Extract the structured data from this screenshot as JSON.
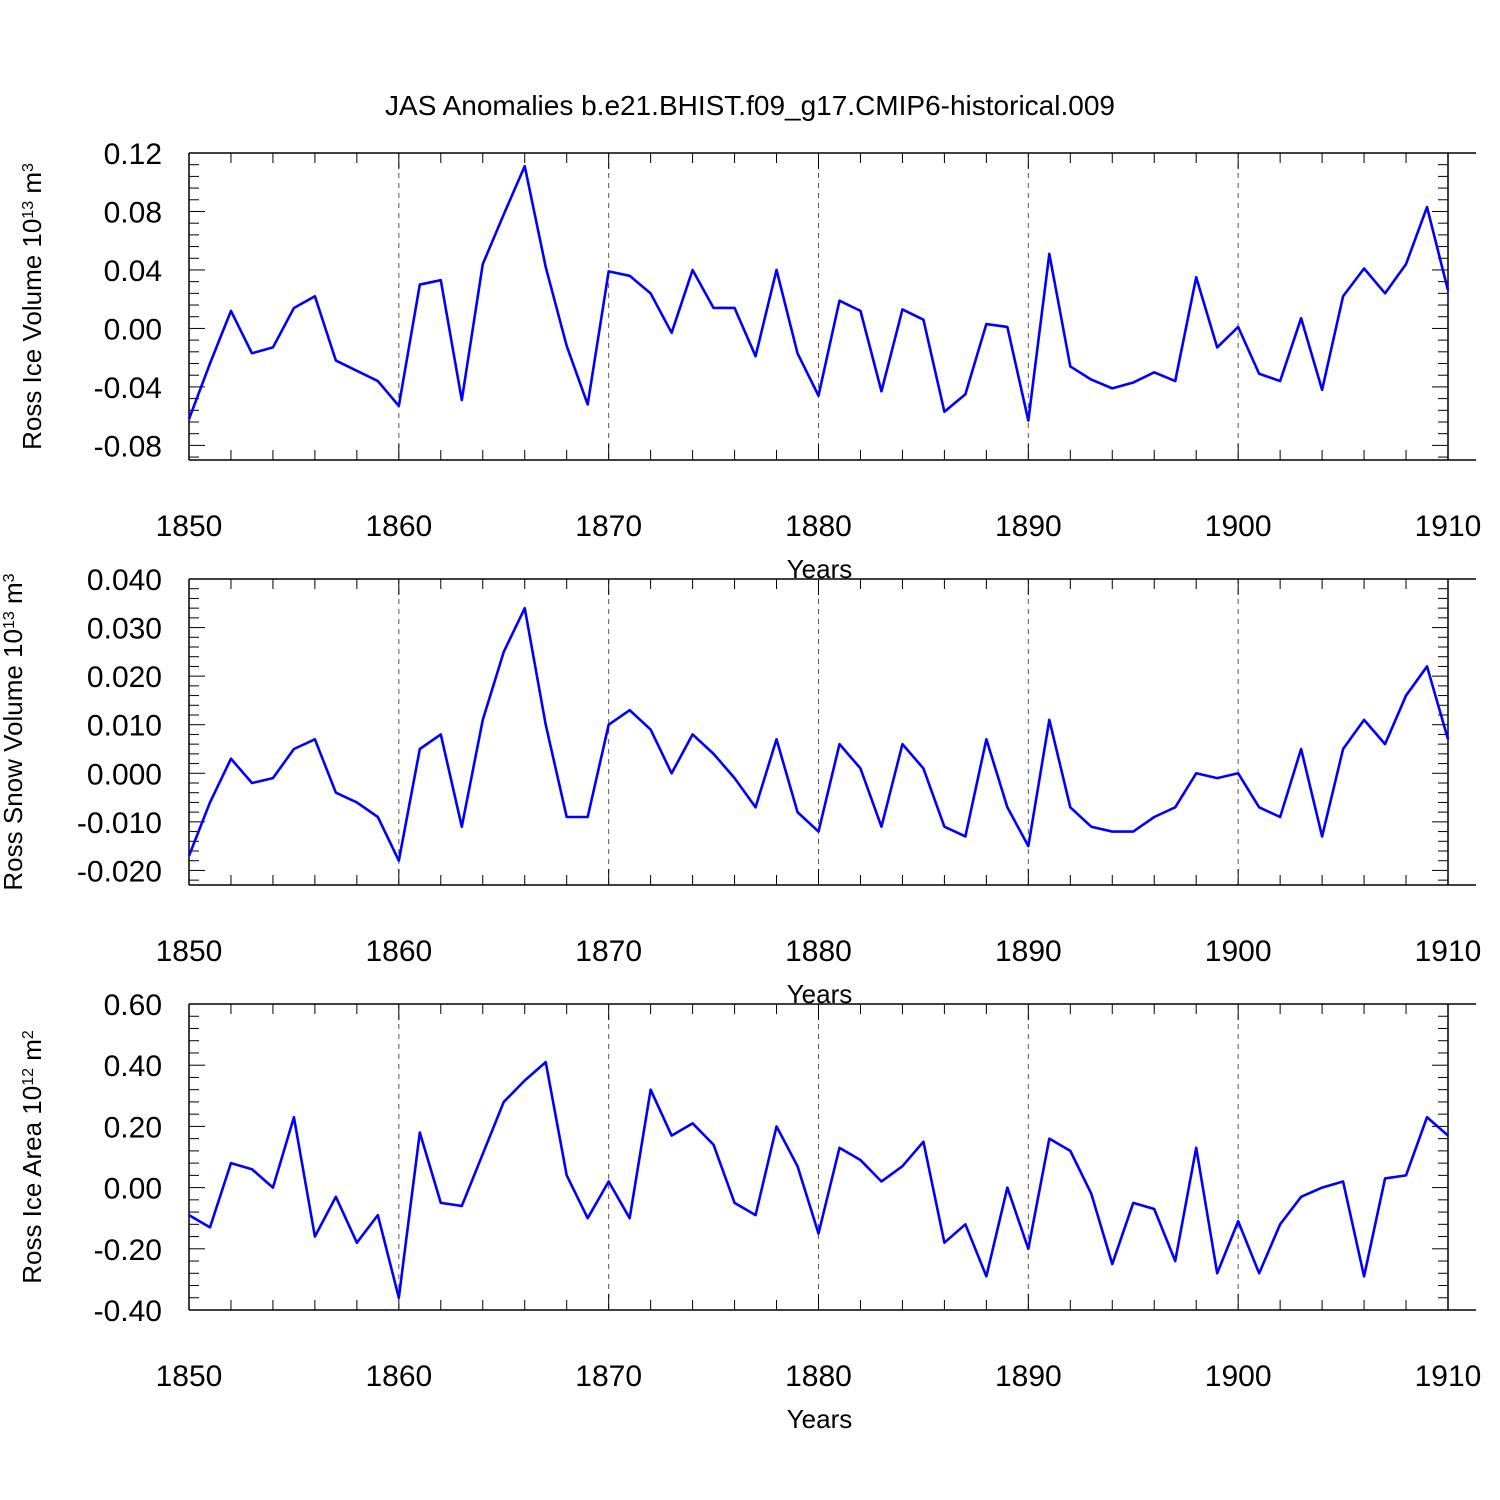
{
  "title": "JAS Anomalies b.e21.BHIST.f09_g17.CMIP6-historical.009",
  "colors": {
    "line": "#0000ff",
    "axis": "#000000",
    "grid": "#555555"
  },
  "chart_data": [
    {
      "type": "line",
      "ylabel_base": "Ross Ice Volume 10",
      "ylabel_exp": "13",
      "ylabel_unit": " m",
      "ylabel_unit_exp": "3",
      "xlabel": "Years",
      "xlim": [
        1850,
        1910
      ],
      "ylim": [
        -0.09,
        0.12
      ],
      "yticks": [
        -0.08,
        -0.04,
        0.0,
        0.04,
        0.08,
        0.12
      ],
      "ytick_labels": [
        "-0.08",
        "-0.04",
        "0.00",
        "0.04",
        "0.08",
        "0.12"
      ],
      "xticks": [
        1850,
        1860,
        1870,
        1880,
        1890,
        1900,
        1910
      ],
      "xtick_labels": [
        "1850",
        "1860",
        "1870",
        "1880",
        "1890",
        "1900",
        "1910"
      ],
      "x_start": 1850,
      "values": [
        -0.062,
        -0.024,
        0.012,
        -0.017,
        -0.013,
        0.014,
        0.022,
        -0.022,
        -0.029,
        -0.036,
        -0.053,
        0.03,
        0.033,
        -0.049,
        0.044,
        0.078,
        0.111,
        0.042,
        -0.012,
        -0.052,
        0.039,
        0.036,
        0.024,
        -0.003,
        0.04,
        0.014,
        0.014,
        -0.019,
        0.04,
        -0.017,
        -0.046,
        0.019,
        0.012,
        -0.043,
        0.013,
        0.006,
        -0.057,
        -0.045,
        0.003,
        0.001,
        -0.063,
        0.051,
        -0.026,
        -0.035,
        -0.041,
        -0.037,
        -0.03,
        -0.036,
        0.035,
        -0.013,
        0.001,
        -0.031,
        -0.036,
        0.007,
        -0.042,
        0.022,
        0.041,
        0.024,
        0.044,
        0.083,
        0.026
      ]
    },
    {
      "type": "line",
      "ylabel_base": "Ross Snow Volume 10",
      "ylabel_exp": "13",
      "ylabel_unit": " m",
      "ylabel_unit_exp": "3",
      "xlabel": "Years",
      "xlim": [
        1850,
        1910
      ],
      "ylim": [
        -0.023,
        0.04
      ],
      "yticks": [
        -0.02,
        -0.01,
        0.0,
        0.01,
        0.02,
        0.03,
        0.04
      ],
      "ytick_labels": [
        "-0.020",
        "-0.010",
        "0.000",
        "0.010",
        "0.020",
        "0.030",
        "0.040"
      ],
      "xticks": [
        1850,
        1860,
        1870,
        1880,
        1890,
        1900,
        1910
      ],
      "xtick_labels": [
        "1850",
        "1860",
        "1870",
        "1880",
        "1890",
        "1900",
        "1910"
      ],
      "x_start": 1850,
      "values": [
        -0.017,
        -0.006,
        0.003,
        -0.002,
        -0.001,
        0.005,
        0.007,
        -0.004,
        -0.006,
        -0.009,
        -0.018,
        0.005,
        0.008,
        -0.011,
        0.011,
        0.025,
        0.034,
        0.01,
        -0.009,
        -0.009,
        0.01,
        0.013,
        0.009,
        0.0,
        0.008,
        0.004,
        -0.001,
        -0.007,
        0.007,
        -0.008,
        -0.012,
        0.006,
        0.001,
        -0.011,
        0.006,
        0.001,
        -0.011,
        -0.013,
        0.007,
        -0.007,
        -0.015,
        0.011,
        -0.007,
        -0.011,
        -0.012,
        -0.012,
        -0.009,
        -0.007,
        -0.0,
        -0.001,
        0.0,
        -0.007,
        -0.009,
        0.005,
        -0.013,
        0.005,
        0.011,
        0.006,
        0.016,
        0.022,
        0.007
      ]
    },
    {
      "type": "line",
      "ylabel_base": "Ross Ice Area 10",
      "ylabel_exp": "12",
      "ylabel_unit": " m",
      "ylabel_unit_exp": "2",
      "xlabel": "Years",
      "xlim": [
        1850,
        1910
      ],
      "ylim": [
        -0.4,
        0.6
      ],
      "yticks": [
        -0.4,
        -0.2,
        0.0,
        0.2,
        0.4,
        0.6
      ],
      "ytick_labels": [
        "-0.40",
        "-0.20",
        "0.00",
        "0.20",
        "0.40",
        "0.60"
      ],
      "xticks": [
        1850,
        1860,
        1870,
        1880,
        1890,
        1900,
        1910
      ],
      "xtick_labels": [
        "1850",
        "1860",
        "1870",
        "1880",
        "1890",
        "1900",
        "1910"
      ],
      "x_start": 1850,
      "values": [
        -0.09,
        -0.13,
        0.08,
        0.06,
        -0.0,
        0.23,
        -0.16,
        -0.03,
        -0.18,
        -0.09,
        -0.36,
        0.18,
        -0.05,
        -0.06,
        0.11,
        0.28,
        0.35,
        0.41,
        0.04,
        -0.1,
        0.02,
        -0.1,
        0.32,
        0.17,
        0.21,
        0.14,
        -0.05,
        -0.09,
        0.2,
        0.07,
        -0.15,
        0.13,
        0.09,
        0.02,
        0.07,
        0.15,
        -0.18,
        -0.12,
        -0.29,
        0.0,
        -0.2,
        0.16,
        0.12,
        -0.02,
        -0.25,
        -0.05,
        -0.07,
        -0.24,
        0.13,
        -0.28,
        -0.11,
        -0.28,
        -0.12,
        -0.03,
        0.0,
        0.02,
        -0.29,
        0.03,
        0.04,
        0.23,
        0.17
      ]
    }
  ]
}
